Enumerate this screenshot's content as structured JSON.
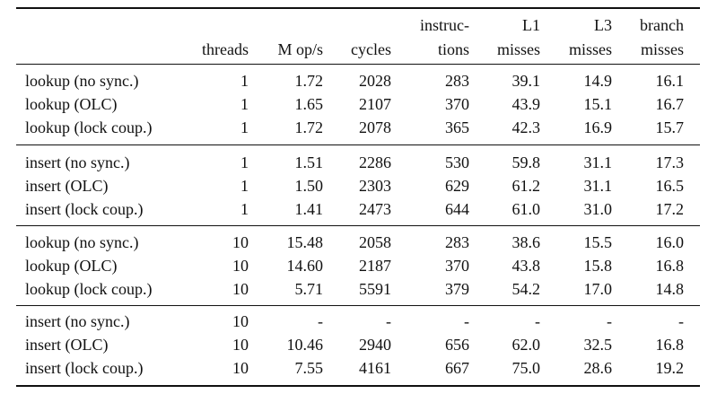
{
  "table": {
    "header": [
      [],
      [
        "threads"
      ],
      [
        "M op/s"
      ],
      [
        "cycles"
      ],
      [
        "instruc-",
        "tions"
      ],
      [
        "L1",
        "misses"
      ],
      [
        "L3",
        "misses"
      ],
      [
        "branch",
        "misses"
      ]
    ],
    "groups": [
      [
        [
          "lookup (no sync.)",
          "1",
          "1.72",
          "2028",
          "283",
          "39.1",
          "14.9",
          "16.1"
        ],
        [
          "lookup (OLC)",
          "1",
          "1.65",
          "2107",
          "370",
          "43.9",
          "15.1",
          "16.7"
        ],
        [
          "lookup (lock coup.)",
          "1",
          "1.72",
          "2078",
          "365",
          "42.3",
          "16.9",
          "15.7"
        ]
      ],
      [
        [
          "insert (no sync.)",
          "1",
          "1.51",
          "2286",
          "530",
          "59.8",
          "31.1",
          "17.3"
        ],
        [
          "insert (OLC)",
          "1",
          "1.50",
          "2303",
          "629",
          "61.2",
          "31.1",
          "16.5"
        ],
        [
          "insert (lock coup.)",
          "1",
          "1.41",
          "2473",
          "644",
          "61.0",
          "31.0",
          "17.2"
        ]
      ],
      [
        [
          "lookup (no sync.)",
          "10",
          "15.48",
          "2058",
          "283",
          "38.6",
          "15.5",
          "16.0"
        ],
        [
          "lookup (OLC)",
          "10",
          "14.60",
          "2187",
          "370",
          "43.8",
          "15.8",
          "16.8"
        ],
        [
          "lookup (lock coup.)",
          "10",
          "5.71",
          "5591",
          "379",
          "54.2",
          "17.0",
          "14.8"
        ]
      ],
      [
        [
          "insert (no sync.)",
          "10",
          "-",
          "-",
          "-",
          "-",
          "-",
          "-"
        ],
        [
          "insert (OLC)",
          "10",
          "10.46",
          "2940",
          "656",
          "62.0",
          "32.5",
          "16.8"
        ],
        [
          "insert (lock coup.)",
          "10",
          "7.55",
          "4161",
          "667",
          "75.0",
          "28.6",
          "19.2"
        ]
      ]
    ]
  }
}
